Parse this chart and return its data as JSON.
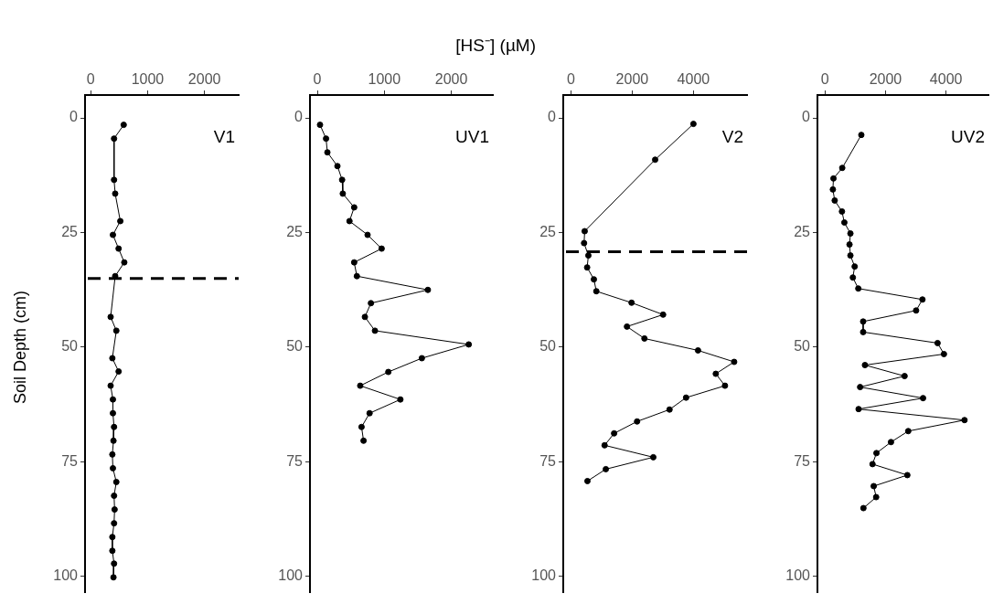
{
  "chart_data": [
    {
      "type": "line",
      "title": "V1",
      "ylabel": "Soil Depth (cm)",
      "xlim": [
        -100,
        2600
      ],
      "xticks": [
        0,
        1000,
        2000
      ],
      "ylim": [
        103.5,
        -5
      ],
      "yticks": [
        0,
        25,
        50,
        75,
        100
      ],
      "grid": false,
      "legend": false,
      "marker": "circle",
      "line_style": "solid",
      "x": [
        580,
        410,
        410,
        430,
        520,
        390,
        490,
        590,
        430,
        350,
        450,
        380,
        490,
        350,
        390,
        390,
        410,
        400,
        380,
        390,
        450,
        410,
        420,
        410,
        380,
        380,
        410,
        400
      ],
      "series": [
        {
          "color": "#000000",
          "values": [
            1.5,
            4.5,
            13.5,
            16.5,
            22.5,
            25.5,
            28.5,
            31.5,
            34.5,
            43.4,
            46.4,
            52.4,
            55.3,
            58.4,
            61.4,
            64.4,
            67.4,
            70.4,
            73.4,
            76.4,
            79.4,
            82.4,
            85.4,
            88.4,
            91.4,
            94.4,
            97.2,
            100.2
          ]
        }
      ],
      "ref_lines": [
        {
          "axis": "y",
          "value": 35,
          "color": "#000000",
          "line_style": "dashed"
        }
      ]
    },
    {
      "type": "line",
      "title": "UV1",
      "xlabel": "[HS⁻] (µM)",
      "xlim": [
        -110,
        2620
      ],
      "xticks": [
        0,
        1000,
        2000
      ],
      "ylim": [
        103.5,
        -5
      ],
      "yticks": [
        0,
        25,
        50,
        75,
        100
      ],
      "grid": false,
      "legend": false,
      "marker": "circle",
      "line_style": "solid",
      "x": [
        40,
        130,
        150,
        300,
        370,
        380,
        550,
        480,
        750,
        960,
        550,
        590,
        1650,
        800,
        710,
        860,
        2260,
        1560,
        1060,
        640,
        1240,
        780,
        660,
        690
      ],
      "series": [
        {
          "color": "#000000",
          "values": [
            1.5,
            4.5,
            7.5,
            10.5,
            13.5,
            16.5,
            19.5,
            22.5,
            25.5,
            28.5,
            31.5,
            34.5,
            37.5,
            40.4,
            43.4,
            46.4,
            49.4,
            52.4,
            55.4,
            58.4,
            61.4,
            64.4,
            67.4,
            70.4
          ]
        }
      ]
    },
    {
      "type": "line",
      "title": "V2",
      "xlim": [
        -250,
        5750
      ],
      "xticks": [
        0,
        2000,
        4000
      ],
      "ylim": [
        103.5,
        -5
      ],
      "yticks": [
        0,
        25,
        50,
        75,
        100
      ],
      "grid": false,
      "legend": false,
      "marker": "circle",
      "line_style": "solid",
      "x": [
        4000,
        2750,
        450,
        430,
        570,
        530,
        750,
        830,
        1980,
        3010,
        1830,
        2400,
        4150,
        5330,
        4730,
        5030,
        3760,
        3220,
        2160,
        1410,
        1100,
        2690,
        1140,
        540
      ],
      "series": [
        {
          "color": "#000000",
          "values": [
            1.3,
            9.1,
            24.7,
            27.3,
            30.0,
            32.6,
            35.2,
            37.8,
            40.3,
            42.9,
            45.5,
            48.1,
            50.7,
            53.2,
            55.8,
            58.4,
            61.0,
            63.6,
            66.2,
            68.8,
            71.4,
            74.0,
            76.6,
            79.2
          ]
        }
      ],
      "ref_lines": [
        {
          "axis": "y",
          "value": 29.2,
          "color": "#000000",
          "line_style": "dashed"
        }
      ]
    },
    {
      "type": "line",
      "title": "UV2",
      "xlim": [
        -250,
        5400
      ],
      "xticks": [
        0,
        2000,
        4000
      ],
      "ylim": [
        103.5,
        -5
      ],
      "yticks": [
        0,
        25,
        50,
        75,
        100
      ],
      "grid": false,
      "legend": false,
      "marker": "circle",
      "line_style": "solid",
      "x": [
        1200,
        570,
        280,
        260,
        320,
        560,
        640,
        840,
        810,
        840,
        980,
        920,
        1100,
        3220,
        3010,
        1260,
        1260,
        3720,
        3930,
        1320,
        2630,
        1160,
        3240,
        1110,
        4610,
        2750,
        2180,
        1700,
        1570,
        2720,
        1610,
        1690,
        1270
      ],
      "series": [
        {
          "color": "#000000",
          "values": [
            3.7,
            10.9,
            13.2,
            15.6,
            18.0,
            20.4,
            22.8,
            25.2,
            27.6,
            30.0,
            32.4,
            34.8,
            37.2,
            39.6,
            42.0,
            44.4,
            46.7,
            49.1,
            51.5,
            53.9,
            56.3,
            58.7,
            61.1,
            63.5,
            65.9,
            68.3,
            70.7,
            73.1,
            75.5,
            77.9,
            80.3,
            82.7,
            85.1
          ]
        }
      ]
    }
  ]
}
